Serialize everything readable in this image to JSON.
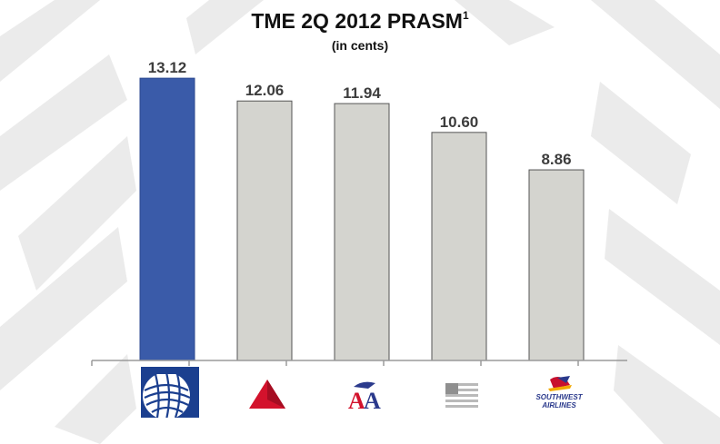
{
  "chart_data": {
    "type": "bar",
    "title": "TME 2Q 2012 PRASM",
    "title_superscript": "1",
    "subtitle": "(in cents)",
    "categories": [
      "United",
      "Delta",
      "American Airlines",
      "US Airways",
      "Southwest Airlines"
    ],
    "values": [
      13.12,
      12.06,
      11.94,
      10.6,
      8.86
    ],
    "value_labels": [
      "13.12",
      "12.06",
      "11.94",
      "10.60",
      "8.86"
    ],
    "ylim": [
      0,
      13.8
    ],
    "bar_colors": [
      "#3a5ba9",
      "#d4d4cf",
      "#d4d4cf",
      "#d4d4cf",
      "#d4d4cf"
    ],
    "grid": false,
    "legend": "none"
  },
  "logos": {
    "united": {
      "icon": "united-globe-icon"
    },
    "delta": {
      "icon": "delta-widget-icon",
      "color": "#d3122c"
    },
    "american": {
      "icon": "american-aa-eagle-icon",
      "text": "AA",
      "colors": [
        "#d3122c",
        "#2b3a8c"
      ]
    },
    "usairways": {
      "icon": "us-airways-flag-icon"
    },
    "southwest": {
      "icon": "southwest-heart-plane-icon",
      "text_line1": "SOUTHWEST",
      "text_line2": "AIRLINES"
    }
  },
  "colors": {
    "axis": "#9a9a9a",
    "label": "#3d3d3d",
    "background_pattern": "#e9e9e9"
  }
}
